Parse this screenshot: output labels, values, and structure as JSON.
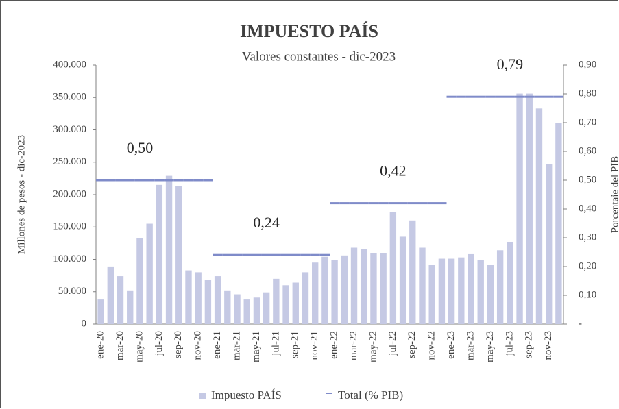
{
  "chart_data": {
    "type": "bar",
    "title": "IMPUESTO PAÍS",
    "subtitle": "Valores constantes - dic-2023",
    "y_label": "Millones de pesos - dic-2023",
    "y2_label": "Porcentaje del PIB",
    "categories": [
      "ene-20",
      null,
      "mar-20",
      null,
      "may-20",
      null,
      "jul-20",
      null,
      "sep-20",
      null,
      "nov-20",
      null,
      "ene-21",
      null,
      "mar-21",
      null,
      "may-21",
      null,
      "jul-21",
      null,
      "sep-21",
      null,
      "nov-21",
      null,
      "ene-22",
      null,
      "mar-22",
      null,
      "may-22",
      null,
      "jul-22",
      null,
      "sep-22",
      null,
      "nov-22",
      null,
      "ene-23",
      null,
      "mar-23",
      null,
      "may-23",
      null,
      "jul-23",
      null,
      "sep-23",
      null,
      "nov-23",
      null
    ],
    "series": [
      {
        "name": "Impuesto PAÍS",
        "type": "bar",
        "color": "#c5c9e4",
        "values": [
          38000,
          89000,
          74000,
          51000,
          133000,
          155000,
          215000,
          229000,
          213000,
          83000,
          80000,
          68000,
          74000,
          51000,
          46000,
          38000,
          41000,
          49000,
          70000,
          60000,
          64000,
          80000,
          95000,
          104000,
          99000,
          106000,
          118000,
          116000,
          110000,
          110000,
          173000,
          135000,
          160000,
          118000,
          91000,
          101000,
          101000,
          103000,
          108000,
          99000,
          91000,
          114000,
          127000,
          356000,
          356000,
          333000,
          247000,
          311000
        ]
      },
      {
        "name": "Total (% PIB)",
        "type": "step",
        "axis": "y2",
        "color": "#7f8bc9",
        "values": [
          0.5,
          0.5,
          0.5,
          0.5,
          0.5,
          0.5,
          0.5,
          0.5,
          0.5,
          0.5,
          0.5,
          0.5,
          0.24,
          0.24,
          0.24,
          0.24,
          0.24,
          0.24,
          0.24,
          0.24,
          0.24,
          0.24,
          0.24,
          0.24,
          0.42,
          0.42,
          0.42,
          0.42,
          0.42,
          0.42,
          0.42,
          0.42,
          0.42,
          0.42,
          0.42,
          0.42,
          0.79,
          0.79,
          0.79,
          0.79,
          0.79,
          0.79,
          0.79,
          0.79,
          0.79,
          0.79,
          0.79,
          0.79
        ],
        "value_labels": [
          null,
          null,
          null,
          null,
          "0,50",
          null,
          null,
          null,
          null,
          null,
          null,
          null,
          null,
          null,
          null,
          null,
          null,
          "0,24",
          null,
          null,
          null,
          null,
          null,
          null,
          null,
          null,
          null,
          null,
          null,
          null,
          "0,42",
          null,
          null,
          null,
          null,
          null,
          null,
          null,
          null,
          null,
          null,
          null,
          "0,79",
          null,
          null,
          null,
          null,
          null
        ]
      }
    ],
    "ylim": [
      0,
      400000
    ],
    "yticks": [
      0,
      {
        "value": 50000,
        "label": "50.000"
      },
      {
        "value": 100000,
        "label": "100.000"
      },
      {
        "value": 150000,
        "label": "150.000"
      },
      {
        "value": 200000,
        "label": "200.000"
      },
      {
        "value": 250000,
        "label": "250.000"
      },
      {
        "value": 300000,
        "label": "300.000"
      },
      {
        "value": 350000,
        "label": "350.000"
      },
      {
        "value": 400000,
        "label": "400.000"
      }
    ],
    "y2lim": [
      0,
      0.9
    ],
    "y2ticks": [
      {
        "value": 0,
        "label": "-"
      },
      {
        "value": 0.1,
        "label": "0,10"
      },
      {
        "value": 0.2,
        "label": "0,20"
      },
      {
        "value": 0.3,
        "label": "0,30"
      },
      {
        "value": 0.4,
        "label": "0,40"
      },
      {
        "value": 0.5,
        "label": "0,50"
      },
      {
        "value": 0.6,
        "label": "0,60"
      },
      {
        "value": 0.7,
        "label": "0,70"
      },
      {
        "value": 0.8,
        "label": "0,80"
      },
      {
        "value": 0.9,
        "label": "0,90"
      }
    ],
    "grid": false,
    "legend": "bottom"
  }
}
